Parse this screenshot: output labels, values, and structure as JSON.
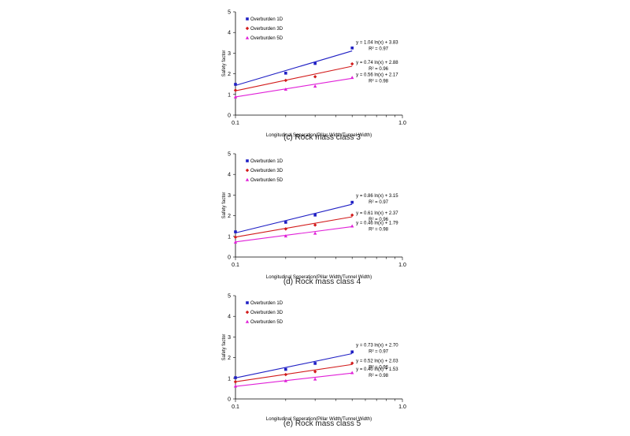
{
  "chart_data": [
    {
      "type": "scatter",
      "caption": "(c)  Rock  mass  class  3",
      "xlabel": "Longitudinal Seperation(Pillar Width/Tunnel Width)",
      "ylabel": "Safety factor",
      "xscale": "log",
      "xlim": [
        0.1,
        1.0
      ],
      "ylim": [
        0,
        5
      ],
      "xticks": [
        "0.1",
        "1.0"
      ],
      "yticks": [
        "0",
        "1",
        "2",
        "3",
        "4",
        "5"
      ],
      "legend_position": "top-left",
      "x": [
        0.1,
        0.2,
        0.3,
        0.5
      ],
      "series": [
        {
          "name": "Overburden 1D",
          "color": "#1f1fc4",
          "marker": "square",
          "values": [
            1.49,
            2.03,
            2.5,
            3.25
          ],
          "fit": {
            "a": 1.04,
            "b": 3.83
          },
          "eq": "y = 1.04 ln(x) + 3.83",
          "r2": "R² = 0.97"
        },
        {
          "name": "Overburden 3D",
          "color": "#d21a1a",
          "marker": "diamond",
          "values": [
            1.2,
            1.68,
            1.86,
            2.48
          ],
          "fit": {
            "a": 0.74,
            "b": 2.88
          },
          "eq": "y = 0.74 ln(x) + 2.88",
          "r2": "R² = 0.96"
        },
        {
          "name": "Overburden 5D",
          "color": "#e020d8",
          "marker": "triangle",
          "values": [
            0.88,
            1.25,
            1.4,
            1.82
          ],
          "fit": {
            "a": 0.56,
            "b": 2.17
          },
          "eq": "y = 0.56 ln(x) + 2.17",
          "r2": "R² = 0.98"
        }
      ]
    },
    {
      "type": "scatter",
      "caption": "(d)  Rock  mass  class  4",
      "xlabel": "Longitudinal Seperation(Pillar Width/Tunnel Width)",
      "ylabel": "Safety factor",
      "xscale": "log",
      "xlim": [
        0.1,
        1.0
      ],
      "ylim": [
        0,
        5
      ],
      "xticks": [
        "0.1",
        "1.0"
      ],
      "yticks": [
        "0",
        "1",
        "2",
        "3",
        "4",
        "5"
      ],
      "legend_position": "top-left",
      "x": [
        0.1,
        0.2,
        0.3,
        0.5
      ],
      "series": [
        {
          "name": "Overburden 1D",
          "color": "#1f1fc4",
          "marker": "square",
          "values": [
            1.22,
            1.68,
            2.03,
            2.65
          ],
          "fit": {
            "a": 0.86,
            "b": 3.15
          },
          "eq": "y = 0.86 ln(x) + 3.15",
          "r2": "R² = 0.97"
        },
        {
          "name": "Overburden 3D",
          "color": "#d21a1a",
          "marker": "diamond",
          "values": [
            0.96,
            1.36,
            1.55,
            2.03
          ],
          "fit": {
            "a": 0.61,
            "b": 2.37
          },
          "eq": "y = 0.61 ln(x) + 2.37",
          "r2": "R² = 0.96"
        },
        {
          "name": "Overburden 5D",
          "color": "#e020d8",
          "marker": "triangle",
          "values": [
            0.72,
            1.02,
            1.15,
            1.5
          ],
          "fit": {
            "a": 0.46,
            "b": 1.79
          },
          "eq": "y = 0.46 ln(x) + 1.79",
          "r2": "R² = 0.98"
        }
      ]
    },
    {
      "type": "scatter",
      "caption": "(e)  Rock  mass  class  5",
      "xlabel": "Longitudinal Seperation(Pillar Width/Tunnel Width)",
      "ylabel": "Safety factor",
      "xscale": "log",
      "xlim": [
        0.1,
        1.0
      ],
      "ylim": [
        0,
        5
      ],
      "xticks": [
        "0.1",
        "1.0"
      ],
      "yticks": [
        "0",
        "1",
        "2",
        "3",
        "4",
        "5"
      ],
      "legend_position": "top-left",
      "x": [
        0.1,
        0.2,
        0.3,
        0.5
      ],
      "series": [
        {
          "name": "Overburden 1D",
          "color": "#1f1fc4",
          "marker": "square",
          "values": [
            1.03,
            1.43,
            1.72,
            2.28
          ],
          "fit": {
            "a": 0.73,
            "b": 2.7
          },
          "eq": "y = 0.73 ln(x) + 2.70",
          "r2": "R² = 0.97"
        },
        {
          "name": "Overburden 3D",
          "color": "#d21a1a",
          "marker": "diamond",
          "values": [
            0.83,
            1.18,
            1.32,
            1.73
          ],
          "fit": {
            "a": 0.52,
            "b": 2.03
          },
          "eq": "y = 0.52 ln(x) + 2.03",
          "r2": "R² = 0.96"
        },
        {
          "name": "Overburden 5D",
          "color": "#e020d8",
          "marker": "triangle",
          "values": [
            0.62,
            0.88,
            0.96,
            1.27
          ],
          "fit": {
            "a": 0.4,
            "b": 1.53
          },
          "eq": "y = 0.40 ln(x) + 1.53",
          "r2": "R² = 0.98"
        }
      ]
    }
  ]
}
